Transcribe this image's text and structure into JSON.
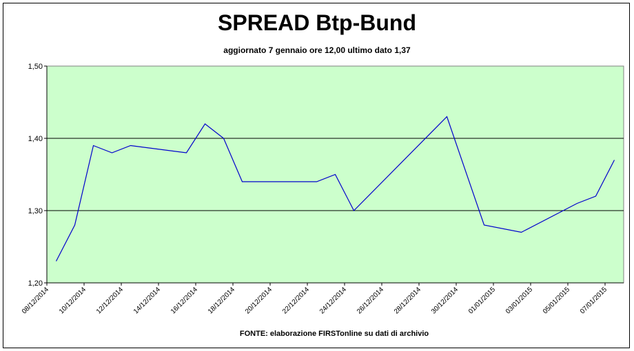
{
  "chart_data": {
    "type": "line",
    "title": "SPREAD Btp-Bund",
    "subtitle": "aggiornato 7 gennaio ore 12,00  ultimo dato  1,37",
    "note": "FONTE: elaborazione FIRSTonline su dati di archivio",
    "x": [
      "08/12/2014",
      "09/12/2014",
      "10/12/2014",
      "11/12/2014",
      "12/12/2014",
      "15/12/2014",
      "16/12/2014",
      "17/12/2014",
      "18/12/2014",
      "22/12/2014",
      "23/12/2014",
      "24/12/2014",
      "29/12/2014",
      "31/12/2014",
      "02/01/2015",
      "05/01/2015",
      "06/01/2015",
      "07/01/2015"
    ],
    "series": [
      {
        "name": "Spread",
        "color": "#0000cc",
        "values": [
          1.23,
          1.28,
          1.39,
          1.38,
          1.39,
          1.38,
          1.42,
          1.4,
          1.34,
          1.34,
          1.35,
          1.3,
          1.43,
          1.28,
          1.27,
          1.31,
          1.32,
          1.37
        ]
      }
    ],
    "xticks": [
      "08/12/2014",
      "10/12/2014",
      "12/12/2014",
      "14/12/2014",
      "16/12/2014",
      "18/12/2014",
      "20/12/2014",
      "22/12/2014",
      "24/12/2014",
      "26/12/2014",
      "28/12/2014",
      "30/12/2014",
      "01/01/2015",
      "03/01/2015",
      "05/01/2015",
      "07/01/2015"
    ],
    "ylim": [
      1.2,
      1.5
    ],
    "yticks": [
      {
        "value": 1.2,
        "label": "1,20"
      },
      {
        "value": 1.3,
        "label": "1,30"
      },
      {
        "value": 1.4,
        "label": "1,40"
      },
      {
        "value": 1.5,
        "label": "1,50"
      }
    ],
    "grid": true,
    "background": "#ccffcc"
  }
}
